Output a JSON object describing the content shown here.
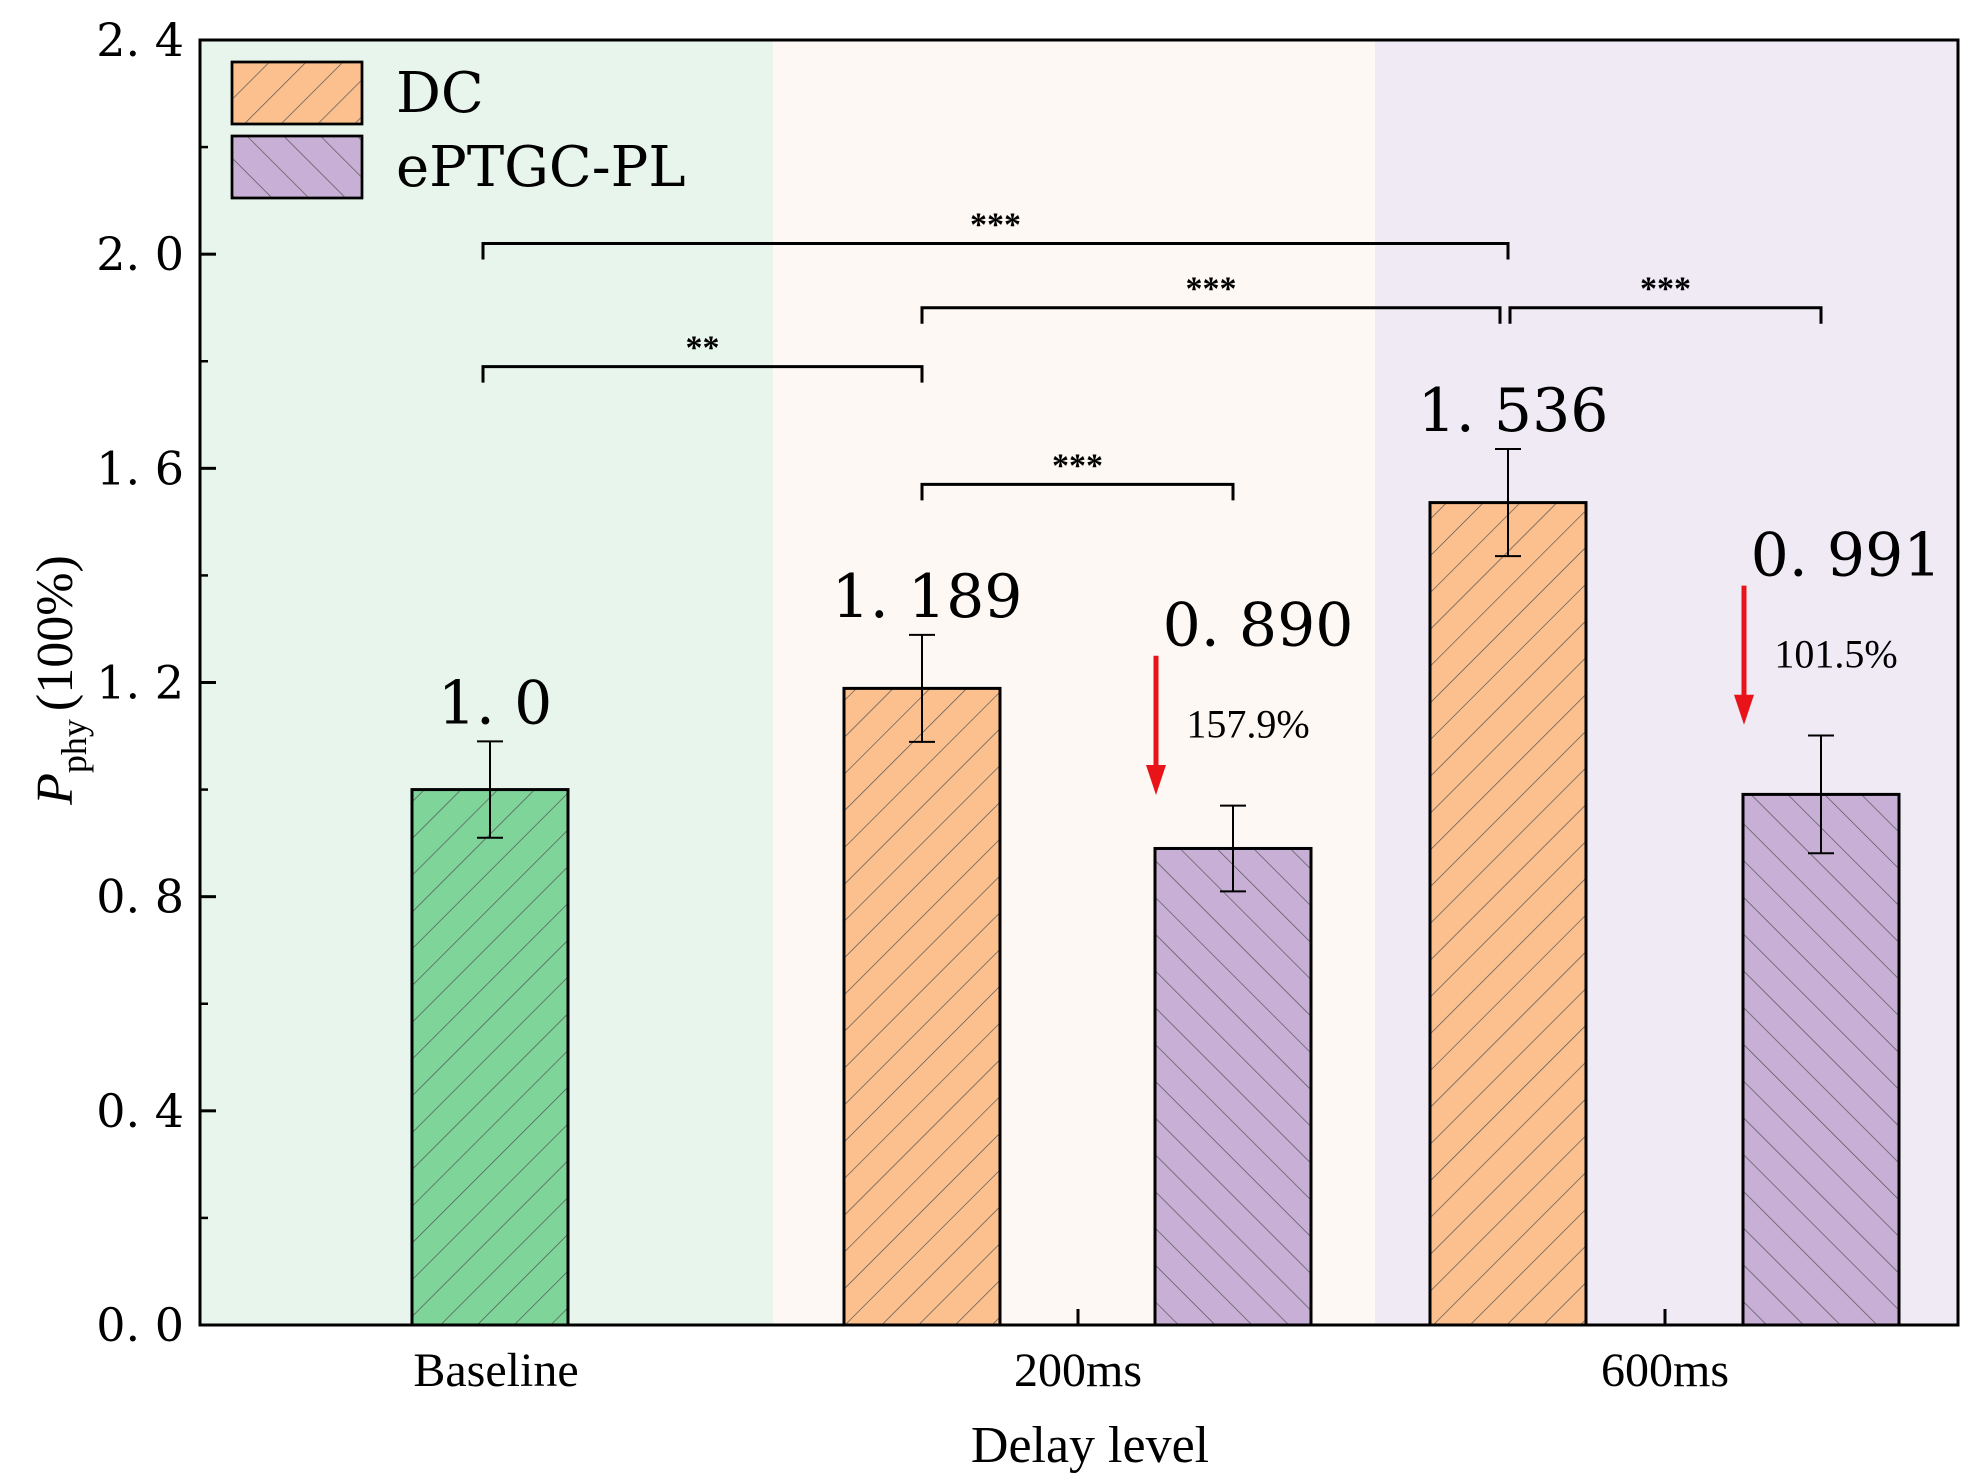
{
  "chart_data": {
    "type": "bar",
    "title": "",
    "xlabel": "Delay level",
    "ylabel_main": "P",
    "ylabel_sub": "phy",
    "ylabel_unit": "(100%)",
    "ylim": [
      0,
      2.4
    ],
    "yticks": [
      "0. 0",
      "0. 4",
      "0. 8",
      "1. 2",
      "1. 6",
      "2. 0",
      "2. 4"
    ],
    "categories": [
      "Baseline",
      "200ms",
      "600ms"
    ],
    "regions": [
      {
        "category": "Baseline",
        "color": "#e8f5ec"
      },
      {
        "category": "200ms",
        "color": "#fdf8f4"
      },
      {
        "category": "600ms",
        "color": "#efeaf3"
      }
    ],
    "legend": [
      {
        "name": "DC",
        "color": "#fbc08e"
      },
      {
        "name": "ePTGC-PL",
        "color": "#c8afd5"
      }
    ],
    "legend_position": "top-left",
    "bars": [
      {
        "category": "Baseline",
        "series": "Baseline",
        "value": 1.0,
        "error": 0.09,
        "label": "1. 0",
        "color": "#7fd49a",
        "hatch": "forward"
      },
      {
        "category": "200ms",
        "series": "DC",
        "value": 1.189,
        "error": 0.1,
        "label": "1. 189",
        "color": "#fbc08e",
        "hatch": "forward"
      },
      {
        "category": "200ms",
        "series": "ePTGC-PL",
        "value": 0.89,
        "error": 0.08,
        "label": "0. 890",
        "color": "#c8afd5",
        "hatch": "back",
        "improvement": "157.9%"
      },
      {
        "category": "600ms",
        "series": "DC",
        "value": 1.536,
        "error": 0.1,
        "label": "1. 536",
        "color": "#fbc08e",
        "hatch": "forward"
      },
      {
        "category": "600ms",
        "series": "ePTGC-PL",
        "value": 0.991,
        "error": 0.11,
        "label": "0. 991",
        "color": "#c8afd5",
        "hatch": "back",
        "improvement": "101.5%"
      }
    ],
    "significance": [
      {
        "from": 0,
        "to": 3,
        "y": 2.02,
        "label": "***"
      },
      {
        "from": 1,
        "to": 3,
        "y": 1.9,
        "label": "***"
      },
      {
        "from": 3,
        "to": 4,
        "y": 1.9,
        "label": "***"
      },
      {
        "from": 0,
        "to": 1,
        "y": 1.79,
        "label": "**"
      },
      {
        "from": 1,
        "to": 2,
        "y": 1.57,
        "label": "***"
      }
    ],
    "arrow_color": "#e8141a"
  }
}
